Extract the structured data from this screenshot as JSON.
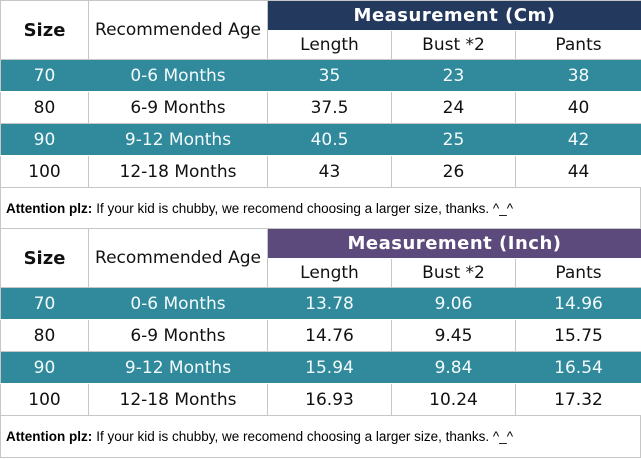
{
  "colors": {
    "teal": "#308A9C",
    "navy": "#233A5E",
    "purple": "#5D4A7C",
    "grid": "#C6C6C6",
    "white_text": "#FFFFFF",
    "black_text": "#000000"
  },
  "chart_data": [
    {
      "type": "table",
      "group_header": "Measurement (Cm)",
      "group_header_bg": "#233A5E",
      "columns": [
        "Size",
        "Recommended Age",
        "Length",
        "Bust *2",
        "Pants"
      ],
      "rows": [
        [
          "70",
          "0-6 Months",
          "35",
          "23",
          "38"
        ],
        [
          "80",
          "6-9 Months",
          "37.5",
          "24",
          "40"
        ],
        [
          "90",
          "9-12 Months",
          "40.5",
          "25",
          "42"
        ],
        [
          "100",
          "12-18 Months",
          "43",
          "26",
          "44"
        ]
      ],
      "highlighted_rows": [
        0,
        2
      ],
      "highlight_bg": "#308A9C",
      "note_label": "Attention plz:",
      "note_text": "If your kid is chubby, we recomend choosing a larger size, thanks. ^_^"
    },
    {
      "type": "table",
      "group_header": "Measurement (Inch)",
      "group_header_bg": "#5D4A7C",
      "columns": [
        "Size",
        "Recommended Age",
        "Length",
        "Bust *2",
        "Pants"
      ],
      "rows": [
        [
          "70",
          "0-6 Months",
          "13.78",
          "9.06",
          "14.96"
        ],
        [
          "80",
          "6-9 Months",
          "14.76",
          "9.45",
          "15.75"
        ],
        [
          "90",
          "9-12 Months",
          "15.94",
          "9.84",
          "16.54"
        ],
        [
          "100",
          "12-18 Months",
          "16.93",
          "10.24",
          "17.32"
        ]
      ],
      "highlighted_rows": [
        0,
        2
      ],
      "highlight_bg": "#308A9C",
      "note_label": "Attention plz:",
      "note_text": "If your kid is chubby, we recomend choosing a larger size, thanks. ^_^"
    }
  ]
}
